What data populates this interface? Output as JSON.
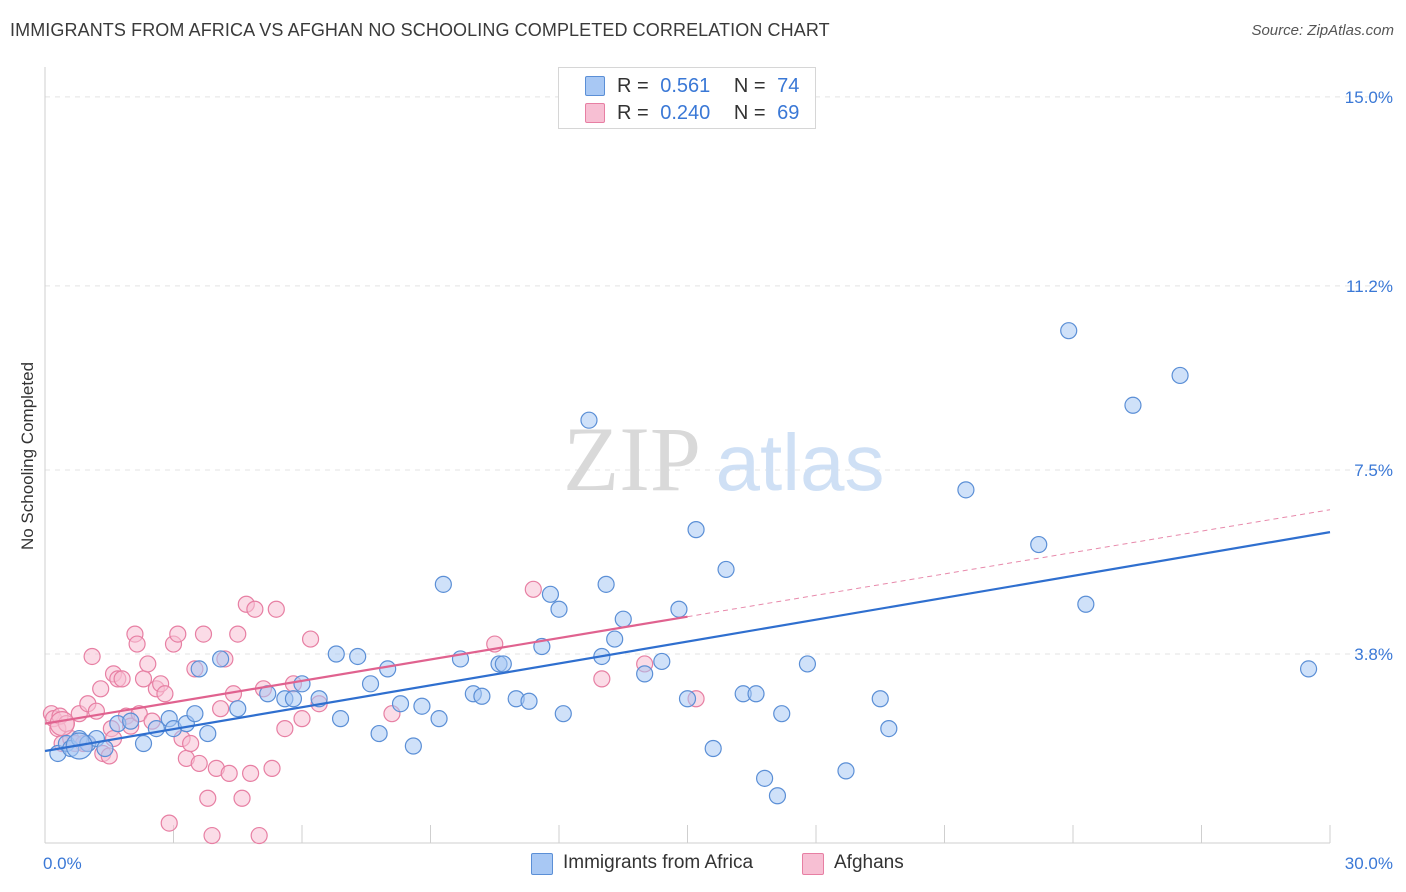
{
  "title": "IMMIGRANTS FROM AFRICA VS AFGHAN NO SCHOOLING COMPLETED CORRELATION CHART",
  "source": "Source: ZipAtlas.com",
  "watermark": {
    "part1": "ZIP",
    "part2": "atlas"
  },
  "legend_top": [
    {
      "r_label": "R =",
      "r_value": "0.561",
      "n_label": "N =",
      "n_value": "74"
    },
    {
      "r_label": "R =",
      "r_value": "0.240",
      "n_label": "N =",
      "n_value": "69"
    }
  ],
  "legend_bottom": [
    {
      "label": "Immigrants from Africa"
    },
    {
      "label": "Afghans"
    }
  ],
  "colors": {
    "blue_fill": "#a8c8f4",
    "blue_stroke": "#5b8fd6",
    "blue_line": "#2f6fcf",
    "pink_fill": "#f7bfd3",
    "pink_stroke": "#e77fa3",
    "pink_line": "#e0628f",
    "grid": "#e3e3e3",
    "tick_label": "#3a78d6"
  },
  "chart_data": {
    "type": "scatter",
    "title": "IMMIGRANTS FROM AFRICA VS AFGHAN NO SCHOOLING COMPLETED CORRELATION CHART",
    "xlabel": "",
    "ylabel": "No Schooling Completed",
    "xlim": [
      0,
      30
    ],
    "ylim": [
      0,
      15.4
    ],
    "x_tick_labels": [
      {
        "value": 0,
        "label": "0.0%"
      },
      {
        "value": 30,
        "label": "30.0%"
      }
    ],
    "y_tick_labels": [
      {
        "value": 3.8,
        "label": "3.8%"
      },
      {
        "value": 7.5,
        "label": "7.5%"
      },
      {
        "value": 11.2,
        "label": "11.2%"
      },
      {
        "value": 15.0,
        "label": "15.0%"
      }
    ],
    "series": [
      {
        "name": "Immigrants from Africa",
        "r": 0.561,
        "n": 74,
        "trend": {
          "x0": 0.0,
          "y0": 1.85,
          "x1": 30.0,
          "y1": 6.25
        },
        "points": [
          [
            0.3,
            1.8
          ],
          [
            0.5,
            2.0
          ],
          [
            0.6,
            1.9
          ],
          [
            0.8,
            2.1
          ],
          [
            1.0,
            2.0
          ],
          [
            1.2,
            2.1
          ],
          [
            1.4,
            1.9
          ],
          [
            1.7,
            2.4
          ],
          [
            2.0,
            2.45
          ],
          [
            2.3,
            2.0
          ],
          [
            2.6,
            2.3
          ],
          [
            2.9,
            2.5
          ],
          [
            3.0,
            2.3
          ],
          [
            3.3,
            2.4
          ],
          [
            3.5,
            2.6
          ],
          [
            3.6,
            3.5
          ],
          [
            3.8,
            2.2
          ],
          [
            4.1,
            3.7
          ],
          [
            4.5,
            2.7
          ],
          [
            5.2,
            3.0
          ],
          [
            5.6,
            2.9
          ],
          [
            5.8,
            2.9
          ],
          [
            6.0,
            3.2
          ],
          [
            6.4,
            2.9
          ],
          [
            6.8,
            3.8
          ],
          [
            6.9,
            2.5
          ],
          [
            7.3,
            3.75
          ],
          [
            7.6,
            3.2
          ],
          [
            7.8,
            2.2
          ],
          [
            8.0,
            3.5
          ],
          [
            8.3,
            2.8
          ],
          [
            8.6,
            1.95
          ],
          [
            8.8,
            2.75
          ],
          [
            9.2,
            2.5
          ],
          [
            9.3,
            5.2
          ],
          [
            9.7,
            3.7
          ],
          [
            10.0,
            3.0
          ],
          [
            10.2,
            2.95
          ],
          [
            10.6,
            3.6
          ],
          [
            10.7,
            3.6
          ],
          [
            11.0,
            2.9
          ],
          [
            11.3,
            2.85
          ],
          [
            11.6,
            3.95
          ],
          [
            11.8,
            5.0
          ],
          [
            12.0,
            4.7
          ],
          [
            12.1,
            2.6
          ],
          [
            12.7,
            8.5
          ],
          [
            13.0,
            3.75
          ],
          [
            13.1,
            5.2
          ],
          [
            13.3,
            4.1
          ],
          [
            13.5,
            4.5
          ],
          [
            14.0,
            3.4
          ],
          [
            14.4,
            3.65
          ],
          [
            14.8,
            4.7
          ],
          [
            15.0,
            2.9
          ],
          [
            15.2,
            6.3
          ],
          [
            15.6,
            1.9
          ],
          [
            15.9,
            5.5
          ],
          [
            16.3,
            3.0
          ],
          [
            16.6,
            3.0
          ],
          [
            16.8,
            1.3
          ],
          [
            17.1,
            0.95
          ],
          [
            17.2,
            2.6
          ],
          [
            17.8,
            3.6
          ],
          [
            18.7,
            1.45
          ],
          [
            19.5,
            2.9
          ],
          [
            19.7,
            2.3
          ],
          [
            21.5,
            7.1
          ],
          [
            23.2,
            6.0
          ],
          [
            23.9,
            10.3
          ],
          [
            24.3,
            4.8
          ],
          [
            25.4,
            8.8
          ],
          [
            26.5,
            9.4
          ],
          [
            29.5,
            3.5
          ]
        ]
      },
      {
        "name": "Afghans",
        "r": 0.24,
        "n": 69,
        "trend": {
          "x0": 0.0,
          "y0": 2.4,
          "x1": 15.0,
          "y1": 4.55
        },
        "trend_extension": {
          "x0": 15.0,
          "y0": 4.55,
          "x1": 30.0,
          "y1": 6.7
        },
        "points": [
          [
            0.15,
            2.6
          ],
          [
            0.2,
            2.5
          ],
          [
            0.3,
            2.3
          ],
          [
            0.35,
            2.55
          ],
          [
            0.4,
            2.0
          ],
          [
            0.5,
            2.4
          ],
          [
            0.6,
            2.1
          ],
          [
            0.7,
            2.0
          ],
          [
            0.8,
            2.6
          ],
          [
            0.9,
            2.0
          ],
          [
            1.0,
            2.0
          ],
          [
            1.0,
            2.8
          ],
          [
            1.1,
            3.75
          ],
          [
            1.2,
            2.65
          ],
          [
            1.3,
            3.1
          ],
          [
            1.35,
            1.8
          ],
          [
            1.5,
            1.75
          ],
          [
            1.55,
            2.3
          ],
          [
            1.6,
            2.1
          ],
          [
            1.6,
            3.4
          ],
          [
            1.7,
            3.3
          ],
          [
            1.8,
            3.3
          ],
          [
            1.9,
            2.55
          ],
          [
            2.0,
            2.35
          ],
          [
            2.1,
            4.2
          ],
          [
            2.15,
            4.0
          ],
          [
            2.2,
            2.6
          ],
          [
            2.3,
            3.3
          ],
          [
            2.4,
            3.6
          ],
          [
            2.5,
            2.45
          ],
          [
            2.6,
            3.1
          ],
          [
            2.7,
            3.2
          ],
          [
            2.8,
            3.0
          ],
          [
            2.9,
            0.4
          ],
          [
            3.0,
            4.0
          ],
          [
            3.1,
            4.2
          ],
          [
            3.2,
            2.1
          ],
          [
            3.3,
            1.7
          ],
          [
            3.4,
            2.0
          ],
          [
            3.5,
            3.5
          ],
          [
            3.6,
            1.6
          ],
          [
            3.7,
            4.2
          ],
          [
            3.8,
            0.9
          ],
          [
            3.9,
            0.15
          ],
          [
            4.0,
            1.5
          ],
          [
            4.1,
            2.7
          ],
          [
            4.2,
            3.7
          ],
          [
            4.3,
            1.4
          ],
          [
            4.4,
            3.0
          ],
          [
            4.5,
            4.2
          ],
          [
            4.6,
            0.9
          ],
          [
            4.7,
            4.8
          ],
          [
            4.8,
            1.4
          ],
          [
            4.9,
            4.7
          ],
          [
            5.0,
            0.15
          ],
          [
            5.1,
            3.1
          ],
          [
            5.3,
            1.5
          ],
          [
            5.4,
            4.7
          ],
          [
            5.6,
            2.3
          ],
          [
            5.8,
            3.2
          ],
          [
            6.0,
            2.5
          ],
          [
            6.2,
            4.1
          ],
          [
            6.4,
            2.8
          ],
          [
            8.1,
            2.6
          ],
          [
            10.5,
            4.0
          ],
          [
            11.4,
            5.1
          ],
          [
            13.0,
            3.3
          ],
          [
            14.0,
            3.6
          ],
          [
            15.2,
            2.9
          ]
        ]
      }
    ]
  }
}
